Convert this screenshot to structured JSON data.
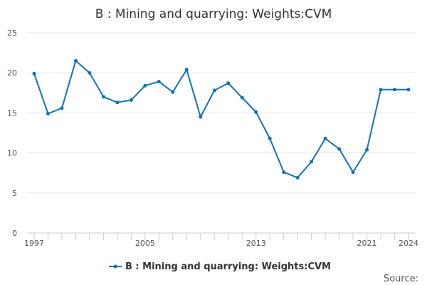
{
  "chart_data": {
    "type": "line",
    "title": "B : Mining and quarrying: Weights:CVM",
    "xlabel": "",
    "ylabel": "",
    "x": [
      1997,
      1998,
      1999,
      2000,
      2001,
      2002,
      2003,
      2004,
      2005,
      2006,
      2007,
      2008,
      2009,
      2010,
      2011,
      2012,
      2013,
      2014,
      2015,
      2016,
      2017,
      2018,
      2019,
      2020,
      2021,
      2022,
      2023,
      2024
    ],
    "x_ticks": [
      "1997",
      "2005",
      "2013",
      "2021",
      "2024"
    ],
    "y_ticks": [
      "0",
      "5",
      "10",
      "15",
      "20",
      "25"
    ],
    "xlim": [
      1997,
      2024
    ],
    "ylim": [
      0,
      25
    ],
    "grid": true,
    "legend_position": "bottom",
    "series": [
      {
        "name": "B : Mining and quarrying: Weights:CVM",
        "color": "#0f73b6",
        "values": [
          19.9,
          14.9,
          15.6,
          21.5,
          20.0,
          17.0,
          16.3,
          16.6,
          18.4,
          18.9,
          17.6,
          20.4,
          14.5,
          17.8,
          18.7,
          16.9,
          15.1,
          11.8,
          7.6,
          6.9,
          8.9,
          11.8,
          10.5,
          7.6,
          10.4,
          17.9,
          17.9,
          17.9
        ]
      }
    ]
  },
  "footer": {
    "source_label": "Source:"
  }
}
